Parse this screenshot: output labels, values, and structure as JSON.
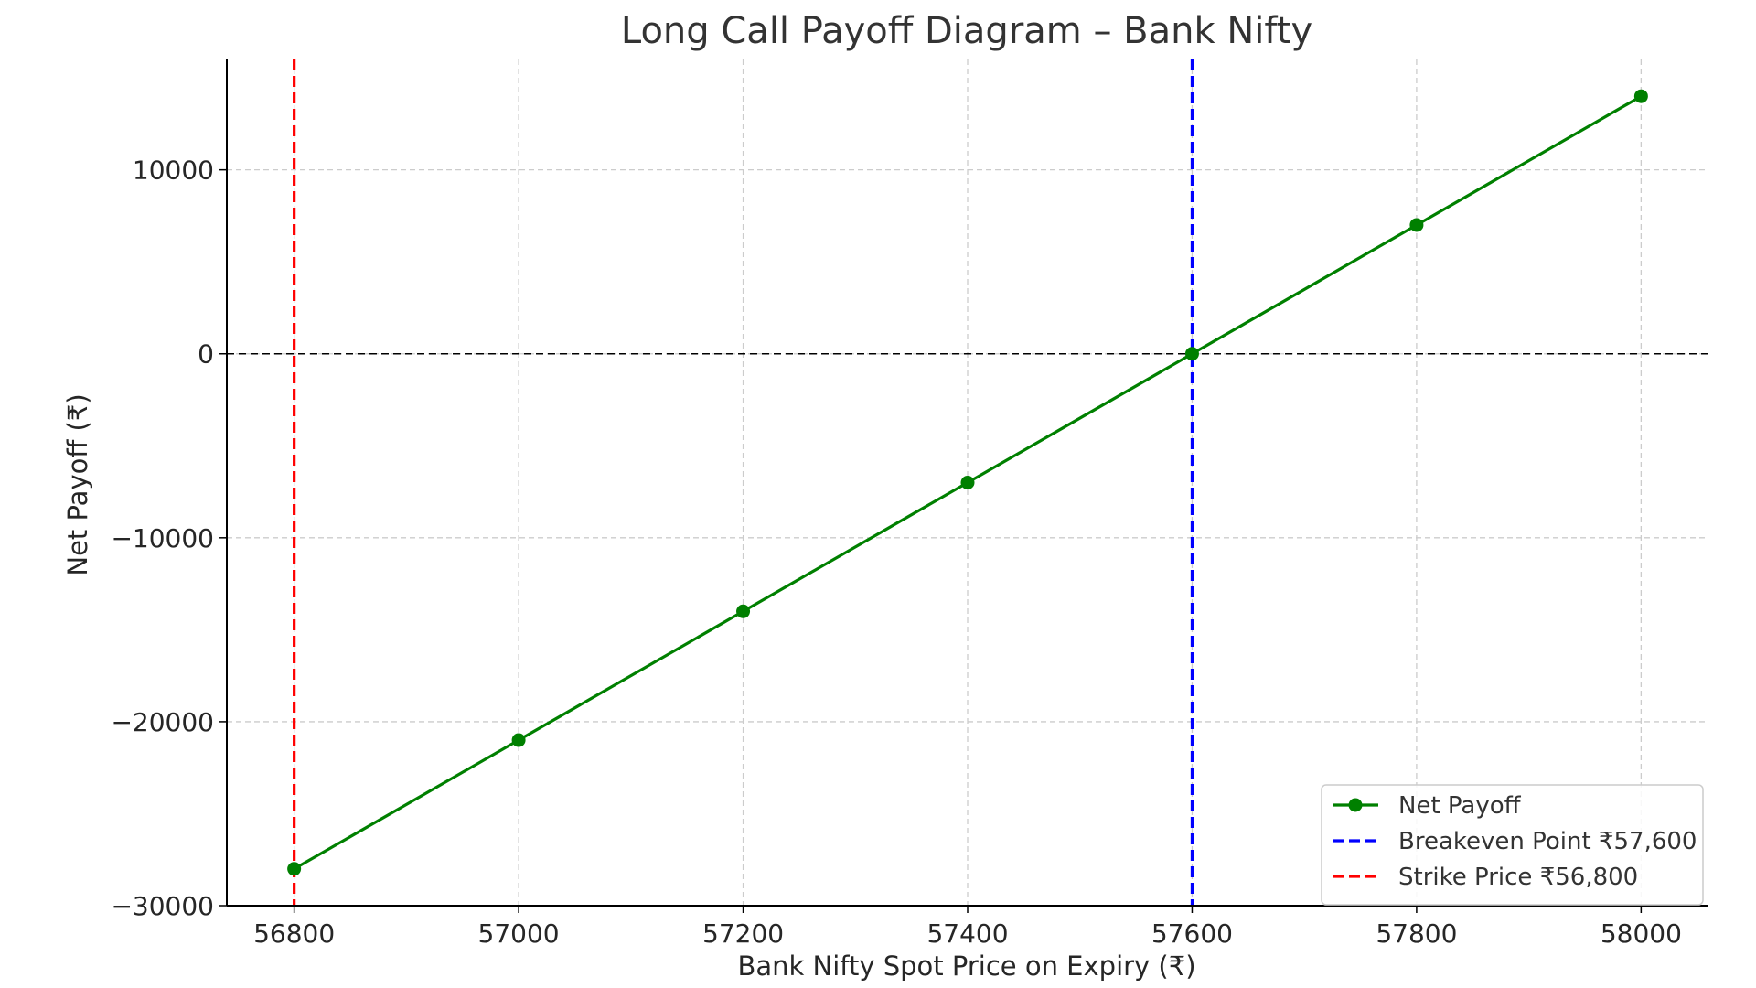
{
  "chart_data": {
    "type": "line",
    "title": "Long Call Payoff Diagram – Bank Nifty",
    "xlabel": "Bank Nifty Spot Price on Expiry (₹)",
    "ylabel": "Net Payoff (₹)",
    "xlim": [
      56740,
      58060
    ],
    "ylim": [
      -30000,
      16000
    ],
    "x_ticks": [
      56800,
      57000,
      57200,
      57400,
      57600,
      57800,
      58000
    ],
    "y_ticks": [
      -30000,
      -20000,
      -10000,
      0,
      10000
    ],
    "grid": true,
    "legend_position": "lower-right",
    "series": [
      {
        "name": "Net Payoff",
        "color": "#008000",
        "marker": "circle",
        "x": [
          56800,
          57000,
          57200,
          57400,
          57600,
          57800,
          58000
        ],
        "y": [
          -28000,
          -21000,
          -14000,
          -7000,
          0,
          7000,
          14000
        ]
      }
    ],
    "reference_lines": [
      {
        "name": "Breakeven Point ₹57,600",
        "orientation": "vertical",
        "value": 57600,
        "color": "#0000ff",
        "style": "dashed"
      },
      {
        "name": "Strike Price ₹56,800",
        "orientation": "vertical",
        "value": 56800,
        "color": "#ff0000",
        "style": "dashed"
      },
      {
        "name": "",
        "orientation": "horizontal",
        "value": 0,
        "color": "#000000",
        "style": "dashed"
      }
    ]
  }
}
